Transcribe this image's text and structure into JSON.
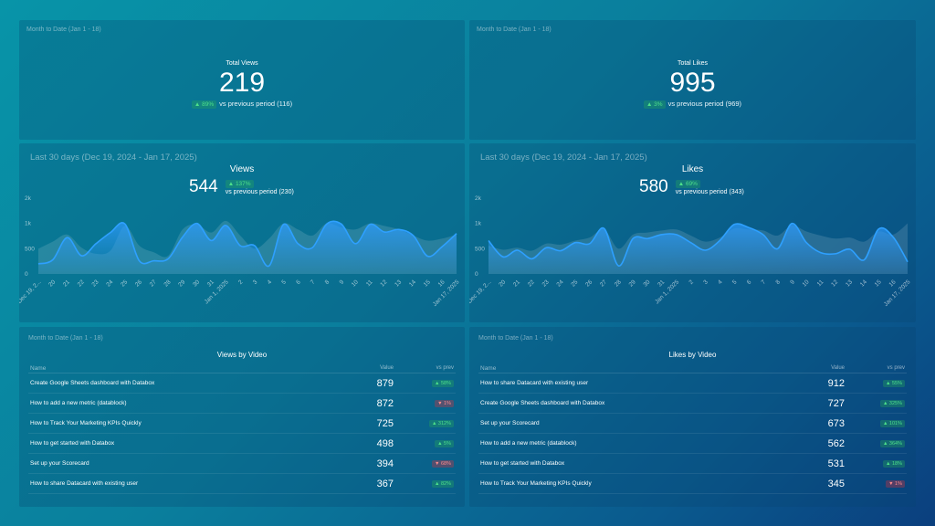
{
  "kpis": [
    {
      "period": "Month to Date (Jan 1 - 18)",
      "title": "Total Views",
      "value": "219",
      "badge": "▲ 89%",
      "direction": "up",
      "compare": "vs previous period (116)"
    },
    {
      "period": "Month to Date (Jan 1 - 18)",
      "title": "Total Likes",
      "value": "995",
      "badge": "▲ 3%",
      "direction": "up",
      "compare": "vs previous period (969)"
    }
  ],
  "line_panels": [
    {
      "period": "Last 30 days (Dec 19, 2024 - Jan 17, 2025)",
      "title": "Views",
      "value": "544",
      "badge": "▲ 137%",
      "direction": "up",
      "compare": "vs previous period (230)"
    },
    {
      "period": "Last 30 days (Dec 19, 2024 - Jan 17, 2025)",
      "title": "Likes",
      "value": "580",
      "badge": "▲ 69%",
      "direction": "up",
      "compare": "vs previous period (343)"
    }
  ],
  "tables": [
    {
      "period": "Month to Date (Jan 1 - 18)",
      "title": "Views by Video",
      "headers": {
        "name": "Name",
        "value": "Value",
        "prev": "vs prev"
      },
      "rows": [
        {
          "name": "Create Google Sheets dashboard with Databox",
          "value": "879",
          "badge": "▲ 58%",
          "direction": "up"
        },
        {
          "name": "How to add a new metric (datablock)",
          "value": "872",
          "badge": "▼ 1%",
          "direction": "down"
        },
        {
          "name": "How to Track Your Marketing KPIs Quickly",
          "value": "725",
          "badge": "▲ 312%",
          "direction": "up"
        },
        {
          "name": "How to get started with Databox",
          "value": "498",
          "badge": "▲ 5%",
          "direction": "up"
        },
        {
          "name": "Set up your Scorecard",
          "value": "394",
          "badge": "▼ 68%",
          "direction": "down"
        },
        {
          "name": "How to share Datacard with existing user",
          "value": "367",
          "badge": "▲ 82%",
          "direction": "up"
        }
      ]
    },
    {
      "period": "Month to Date (Jan 1 - 18)",
      "title": "Likes by Video",
      "headers": {
        "name": "Name",
        "value": "Value",
        "prev": "vs prev"
      },
      "rows": [
        {
          "name": "How to share Datacard with existing user",
          "value": "912",
          "badge": "▲ 55%",
          "direction": "up"
        },
        {
          "name": "Create Google Sheets dashboard with Databox",
          "value": "727",
          "badge": "▲ 325%",
          "direction": "up"
        },
        {
          "name": "Set up your Scorecard",
          "value": "673",
          "badge": "▲ 101%",
          "direction": "up"
        },
        {
          "name": "How to add a new metric (datablock)",
          "value": "562",
          "badge": "▲ 364%",
          "direction": "up"
        },
        {
          "name": "How to get started with Databox",
          "value": "531",
          "badge": "▲ 18%",
          "direction": "up"
        },
        {
          "name": "How to Track Your Marketing KPIs Quickly",
          "value": "345",
          "badge": "▼ 1%",
          "direction": "down"
        }
      ]
    }
  ],
  "chart_data": [
    {
      "type": "area",
      "title": "Views",
      "x": [
        "Dec 19, 2...",
        "20",
        "21",
        "22",
        "23",
        "24",
        "25",
        "26",
        "27",
        "28",
        "29",
        "30",
        "31",
        "Jan 1, 2025",
        "2",
        "3",
        "4",
        "5",
        "6",
        "7",
        "8",
        "9",
        "10",
        "11",
        "12",
        "13",
        "14",
        "15",
        "16",
        "Jan 17, 2025"
      ],
      "y_ticks": [
        "0",
        "500",
        "1k",
        "2k"
      ],
      "ylim": [
        0,
        1500
      ],
      "series": [
        {
          "values": [
            200,
            280,
            720,
            360,
            600,
            820,
            990,
            260,
            260,
            300,
            730,
            1000,
            660,
            960,
            560,
            560,
            160,
            980,
            600,
            520,
            990,
            990,
            600,
            980,
            830,
            880,
            760,
            350,
            540,
            800
          ]
        },
        {
          "values": [
            500,
            640,
            780,
            520,
            400,
            460,
            950,
            560,
            430,
            360,
            880,
            980,
            820,
            1050,
            760,
            500,
            700,
            1000,
            880,
            760,
            1000,
            920,
            880,
            1000,
            950,
            880,
            760,
            660,
            700,
            780
          ]
        }
      ]
    },
    {
      "type": "area",
      "title": "Likes",
      "x": [
        "Dec 19, 2...",
        "20",
        "21",
        "22",
        "23",
        "24",
        "25",
        "26",
        "27",
        "28",
        "29",
        "30",
        "31",
        "Jan 1, 2025",
        "2",
        "3",
        "4",
        "5",
        "6",
        "7",
        "8",
        "9",
        "10",
        "11",
        "12",
        "13",
        "14",
        "15",
        "16",
        "Jan 17, 2025"
      ],
      "y_ticks": [
        "0",
        "500",
        "1k",
        "2k"
      ],
      "ylim": [
        0,
        1500
      ],
      "series": [
        {
          "values": [
            660,
            340,
            470,
            300,
            520,
            460,
            620,
            600,
            900,
            160,
            700,
            700,
            780,
            780,
            620,
            470,
            660,
            980,
            920,
            780,
            500,
            1000,
            620,
            420,
            400,
            490,
            280,
            890,
            730,
            240
          ]
        },
        {
          "values": [
            560,
            480,
            520,
            460,
            600,
            580,
            660,
            720,
            880,
            500,
            780,
            820,
            860,
            880,
            760,
            640,
            720,
            900,
            880,
            860,
            760,
            960,
            840,
            760,
            700,
            720,
            640,
            840,
            780,
            1000
          ]
        }
      ]
    }
  ]
}
